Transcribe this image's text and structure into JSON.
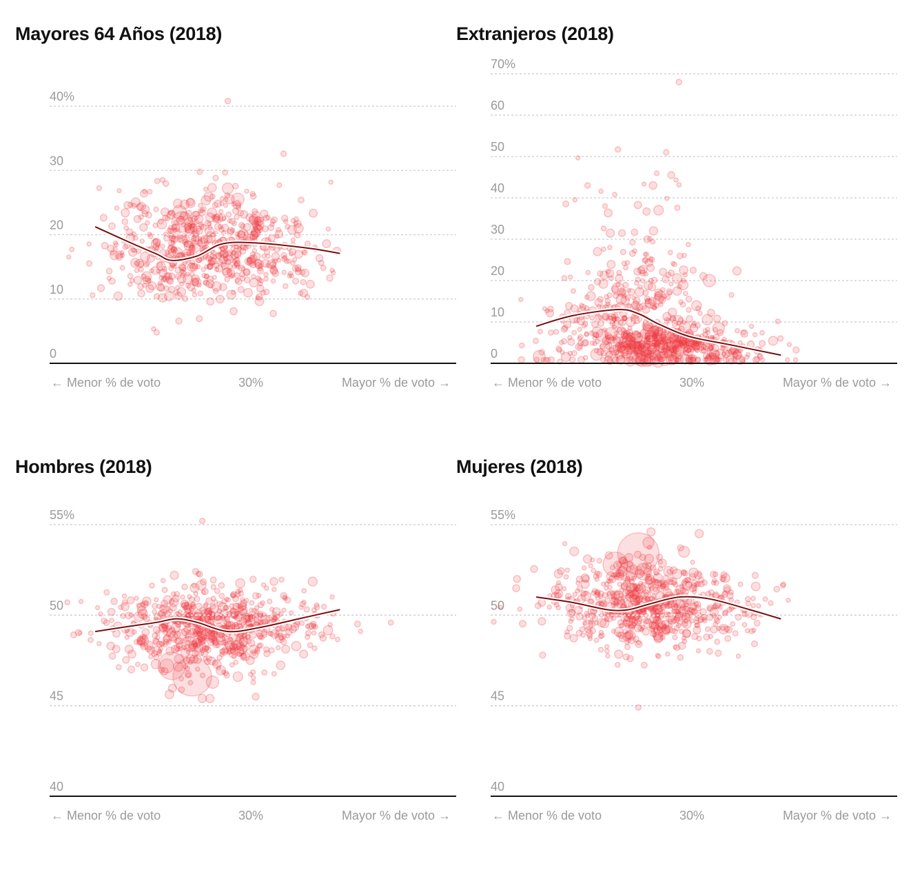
{
  "colors": {
    "point_fill": "#ef3a3f",
    "trend": "#7a0d0d",
    "trend_halo": "#ffffff",
    "grid": "#cccccc",
    "baseline": "#111111",
    "tick_text": "#9a9a9a",
    "title_text": "#111111"
  },
  "chart_data": [
    {
      "type": "scatter",
      "title": "Mayores 64 Años (2018)",
      "xlabel_left": "← Menor % de voto",
      "xlabel_center": "30%",
      "xlabel_right": "Mayor % de voto →",
      "ylim": [
        0,
        42
      ],
      "yticks": [
        0,
        10,
        20,
        30,
        40
      ],
      "ytick_labels": [
        "0",
        "10",
        "20",
        "30",
        "40%"
      ],
      "x_range": [
        0,
        60
      ],
      "grid": true,
      "center_x": 30,
      "center_y": 20,
      "trend": {
        "x": [
          8,
          15,
          20,
          23,
          28,
          33,
          40,
          50,
          56
        ],
        "y": [
          21.2,
          18.7,
          17.0,
          16.0,
          16.7,
          18.6,
          18.7,
          17.9,
          17.1
        ]
      },
      "cloud": [
        {
          "cx": 30,
          "cy": 18,
          "sx": 9,
          "sy": 4.2,
          "n": 480,
          "r": [
            3,
            7
          ]
        },
        {
          "cx": 22,
          "cy": 17,
          "sx": 11,
          "sy": 3.5,
          "n": 90,
          "r": [
            3,
            6
          ]
        },
        {
          "cx": 46,
          "cy": 17,
          "sx": 5,
          "sy": 3,
          "n": 60,
          "r": [
            3,
            6
          ]
        }
      ],
      "big": [
        {
          "x": 25,
          "y": 22,
          "r": 15
        },
        {
          "x": 24.5,
          "y": 23.5,
          "r": 10
        },
        {
          "x": 34,
          "y": 27.2,
          "r": 8
        },
        {
          "x": 36,
          "y": 25.5,
          "r": 9
        },
        {
          "x": 40,
          "y": 21.5,
          "r": 8
        },
        {
          "x": 37,
          "y": 20,
          "r": 8
        },
        {
          "x": 34,
          "y": 40.8,
          "r": 4
        },
        {
          "x": 45,
          "y": 32.6,
          "r": 4
        },
        {
          "x": 28.5,
          "y": 29.8,
          "r": 4
        },
        {
          "x": 20,
          "y": 4.8,
          "r": 4
        },
        {
          "x": 17,
          "y": 24.4,
          "r": 6
        },
        {
          "x": 18,
          "y": 13.5,
          "r": 7
        }
      ]
    },
    {
      "type": "scatter",
      "title": "Extranjeros (2018)",
      "xlabel_left": "← Menor % de voto",
      "xlabel_center": "30%",
      "xlabel_right": "Mayor % de voto →",
      "ylim": [
        0,
        72
      ],
      "yticks": [
        0,
        10,
        20,
        30,
        40,
        50,
        60,
        70
      ],
      "ytick_labels": [
        "0",
        "10",
        "20",
        "30",
        "40",
        "50",
        "60",
        "70%"
      ],
      "x_range": [
        0,
        60
      ],
      "grid": true,
      "center_x": 30,
      "center_y": 10,
      "trend": {
        "x": [
          8,
          15,
          24,
          28,
          32,
          38,
          46,
          56
        ],
        "y": [
          9.0,
          11.5,
          13.0,
          12.0,
          9.5,
          6.5,
          4.5,
          2.0
        ]
      },
      "cloud": [
        {
          "cx": 32,
          "cy": 4,
          "sx": 7,
          "sy": 2.5,
          "n": 300,
          "r": [
            3,
            9
          ]
        },
        {
          "cx": 29,
          "cy": 12,
          "sx": 7,
          "sy": 6,
          "n": 200,
          "r": [
            3,
            8
          ]
        },
        {
          "cx": 27,
          "cy": 25,
          "sx": 6,
          "sy": 9,
          "n": 70,
          "r": [
            3,
            6
          ]
        },
        {
          "cx": 44,
          "cy": 4,
          "sx": 7,
          "sy": 3,
          "n": 90,
          "r": [
            3,
            6
          ]
        },
        {
          "cx": 18,
          "cy": 7,
          "sx": 7,
          "sy": 5,
          "n": 80,
          "r": [
            3,
            6
          ]
        }
      ],
      "big": [
        {
          "x": 36,
          "y": 68,
          "r": 4
        },
        {
          "x": 33.5,
          "y": 51,
          "r": 4
        },
        {
          "x": 24,
          "y": 51.7,
          "r": 4
        },
        {
          "x": 34.5,
          "y": 45.5,
          "r": 5
        },
        {
          "x": 32,
          "y": 37,
          "r": 7
        },
        {
          "x": 42,
          "y": 20,
          "r": 9
        },
        {
          "x": 24,
          "y": 18,
          "r": 9
        },
        {
          "x": 32,
          "y": 15.5,
          "r": 7
        },
        {
          "x": 31,
          "y": 32,
          "r": 6
        },
        {
          "x": 18,
          "y": 43,
          "r": 4
        },
        {
          "x": 56,
          "y": 6,
          "r": 4
        }
      ]
    },
    {
      "type": "scatter",
      "title": "Hombres (2018)",
      "xlabel_left": "← Menor % de voto",
      "xlabel_center": "30%",
      "xlabel_right": "Mayor % de voto →",
      "ylim": [
        40,
        55.6
      ],
      "yticks": [
        40,
        45,
        50,
        55
      ],
      "ytick_labels": [
        "40",
        "45",
        "50",
        "55%"
      ],
      "x_range": [
        0,
        60
      ],
      "grid": true,
      "center_x": 30,
      "center_y": 50,
      "trend": {
        "x": [
          8,
          15,
          20,
          24,
          28,
          34,
          40,
          48,
          56
        ],
        "y": [
          49.1,
          49.4,
          49.6,
          49.8,
          49.6,
          49.1,
          49.3,
          49.8,
          50.3
        ]
      },
      "cloud": [
        {
          "cx": 31,
          "cy": 49.3,
          "sx": 8,
          "sy": 1.2,
          "n": 500,
          "r": [
            3,
            7
          ]
        },
        {
          "cx": 22,
          "cy": 49.5,
          "sx": 11,
          "sy": 1.0,
          "n": 100,
          "r": [
            3,
            6
          ]
        },
        {
          "cx": 45,
          "cy": 49.6,
          "sx": 6,
          "sy": 0.7,
          "n": 70,
          "r": [
            3,
            5
          ]
        }
      ],
      "big": [
        {
          "x": 23,
          "y": 47.2,
          "r": 20
        },
        {
          "x": 27,
          "y": 46.6,
          "r": 28
        },
        {
          "x": 26.5,
          "y": 48.4,
          "r": 11
        },
        {
          "x": 22,
          "y": 47.2,
          "r": 10
        },
        {
          "x": 31,
          "y": 46.3,
          "r": 9
        },
        {
          "x": 36,
          "y": 46.6,
          "r": 7
        },
        {
          "x": 29,
          "y": 45.4,
          "r": 6
        },
        {
          "x": 30.5,
          "y": 45.4,
          "r": 6
        },
        {
          "x": 39.5,
          "y": 45.5,
          "r": 5
        },
        {
          "x": 15,
          "y": 47.0,
          "r": 5
        },
        {
          "x": 29,
          "y": 55.2,
          "r": 4
        },
        {
          "x": 23.5,
          "y": 52.2,
          "r": 6
        }
      ]
    },
    {
      "type": "scatter",
      "title": "Mujeres (2018)",
      "xlabel_left": "← Menor % de voto",
      "xlabel_center": "30%",
      "xlabel_right": "Mayor % de voto →",
      "ylim": [
        40,
        55.6
      ],
      "yticks": [
        40,
        45,
        50,
        55
      ],
      "ytick_labels": [
        "40",
        "45",
        "50",
        "55%"
      ],
      "x_range": [
        0,
        60
      ],
      "grid": true,
      "center_x": 30,
      "center_y": 50,
      "trend": {
        "x": [
          8,
          15,
          22,
          26,
          30,
          36,
          42,
          50,
          56
        ],
        "y": [
          51.0,
          50.7,
          50.3,
          50.3,
          50.6,
          51.0,
          50.9,
          50.3,
          49.8
        ]
      },
      "cloud": [
        {
          "cx": 30,
          "cy": 50.7,
          "sx": 8,
          "sy": 1.3,
          "n": 500,
          "r": [
            3,
            7
          ]
        },
        {
          "cx": 22,
          "cy": 50.5,
          "sx": 11,
          "sy": 1.0,
          "n": 100,
          "r": [
            3,
            6
          ]
        },
        {
          "cx": 46,
          "cy": 50.4,
          "sx": 6,
          "sy": 0.8,
          "n": 70,
          "r": [
            3,
            5
          ]
        }
      ],
      "big": [
        {
          "x": 28,
          "y": 53.4,
          "r": 30
        },
        {
          "x": 23.5,
          "y": 52.8,
          "r": 18
        },
        {
          "x": 26,
          "y": 52.4,
          "r": 14
        },
        {
          "x": 29,
          "y": 52.4,
          "r": 12
        },
        {
          "x": 30.5,
          "y": 54.6,
          "r": 6
        },
        {
          "x": 40,
          "y": 54.5,
          "r": 6
        },
        {
          "x": 37,
          "y": 53.5,
          "r": 8
        },
        {
          "x": 18,
          "y": 53.1,
          "r": 6
        },
        {
          "x": 30,
          "y": 54.0,
          "r": 8
        },
        {
          "x": 28,
          "y": 44.9,
          "r": 4
        },
        {
          "x": 32,
          "y": 48.8,
          "r": 7
        }
      ]
    }
  ]
}
